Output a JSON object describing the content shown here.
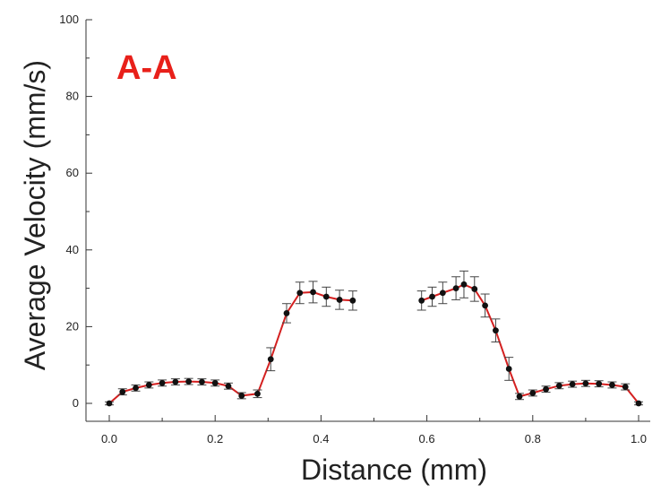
{
  "chart_data": {
    "type": "line",
    "annotation": "A-A",
    "annotation_color": "#e8201a",
    "xlabel": "Distance (mm)",
    "ylabel": "Average Velocity (mm/s)",
    "xlim": [
      -0.05,
      1.03
    ],
    "ylim": [
      -2,
      100
    ],
    "xticks": [
      "0.0",
      "0.2",
      "0.4",
      "0.6",
      "0.8",
      "1.0"
    ],
    "yticks": [
      "0",
      "20",
      "40",
      "60",
      "80",
      "100"
    ],
    "grid": false,
    "line_color": "#d42020",
    "marker_color": "#111111",
    "series": [
      {
        "values": [
          {
            "x": 0.0,
            "y": 0.0,
            "err": 0.4
          },
          {
            "x": 0.025,
            "y": 3.0,
            "err": 0.8
          },
          {
            "x": 0.05,
            "y": 4.0,
            "err": 0.8
          },
          {
            "x": 0.075,
            "y": 4.8,
            "err": 0.8
          },
          {
            "x": 0.1,
            "y": 5.3,
            "err": 0.8
          },
          {
            "x": 0.125,
            "y": 5.6,
            "err": 0.8
          },
          {
            "x": 0.15,
            "y": 5.7,
            "err": 0.8
          },
          {
            "x": 0.175,
            "y": 5.6,
            "err": 0.8
          },
          {
            "x": 0.2,
            "y": 5.3,
            "err": 0.8
          },
          {
            "x": 0.225,
            "y": 4.5,
            "err": 0.8
          },
          {
            "x": 0.25,
            "y": 2.0,
            "err": 0.8
          },
          {
            "x": 0.28,
            "y": 2.5,
            "err": 1.0
          },
          {
            "x": 0.305,
            "y": 11.5,
            "err": 3.0
          },
          {
            "x": 0.335,
            "y": 23.5,
            "err": 2.5
          },
          {
            "x": 0.36,
            "y": 28.8,
            "err": 2.8
          },
          {
            "x": 0.385,
            "y": 29.0,
            "err": 2.8
          },
          {
            "x": 0.41,
            "y": 27.8,
            "err": 2.5
          },
          {
            "x": 0.435,
            "y": 27.0,
            "err": 2.5
          },
          {
            "x": 0.46,
            "y": 26.8,
            "err": 2.5
          }
        ]
      },
      {
        "values": [
          {
            "x": 0.59,
            "y": 26.8,
            "err": 2.5
          },
          {
            "x": 0.61,
            "y": 27.8,
            "err": 2.5
          },
          {
            "x": 0.63,
            "y": 28.8,
            "err": 2.8
          },
          {
            "x": 0.655,
            "y": 30.0,
            "err": 3.0
          },
          {
            "x": 0.67,
            "y": 31.0,
            "err": 3.5
          },
          {
            "x": 0.69,
            "y": 29.8,
            "err": 3.2
          },
          {
            "x": 0.71,
            "y": 25.5,
            "err": 3.0
          },
          {
            "x": 0.73,
            "y": 19.0,
            "err": 3.0
          },
          {
            "x": 0.755,
            "y": 9.0,
            "err": 3.0
          },
          {
            "x": 0.775,
            "y": 1.8,
            "err": 0.8
          },
          {
            "x": 0.8,
            "y": 2.7,
            "err": 0.8
          },
          {
            "x": 0.825,
            "y": 3.7,
            "err": 0.8
          },
          {
            "x": 0.85,
            "y": 4.6,
            "err": 0.8
          },
          {
            "x": 0.875,
            "y": 5.0,
            "err": 0.8
          },
          {
            "x": 0.9,
            "y": 5.2,
            "err": 0.8
          },
          {
            "x": 0.925,
            "y": 5.1,
            "err": 0.8
          },
          {
            "x": 0.95,
            "y": 4.8,
            "err": 0.8
          },
          {
            "x": 0.975,
            "y": 4.3,
            "err": 0.8
          },
          {
            "x": 1.0,
            "y": 0.0,
            "err": 0.4
          }
        ]
      }
    ]
  }
}
